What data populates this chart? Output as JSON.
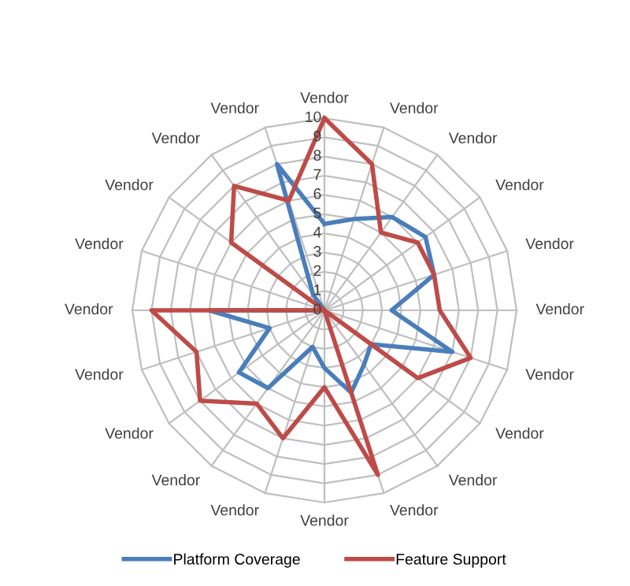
{
  "chart_data": {
    "type": "radar",
    "categories": [
      "Vendor",
      "Vendor",
      "Vendor",
      "Vendor",
      "Vendor",
      "Vendor",
      "Vendor",
      "Vendor",
      "Vendor",
      "Vendor",
      "Vendor",
      "Vendor",
      "Vendor",
      "Vendor",
      "Vendor",
      "Vendor",
      "Vendor",
      "Vendor",
      "Vendor",
      "Vendor"
    ],
    "series": [
      {
        "name": "Platform Coverage",
        "color": "#4a7ebb",
        "values": [
          4.5,
          5,
          6,
          6.5,
          6,
          3.5,
          7,
          3,
          3.5,
          4.5,
          3,
          2,
          5,
          5.5,
          3,
          6,
          0,
          0,
          1,
          8
        ]
      },
      {
        "name": "Feature Support",
        "color": "#be4b48",
        "values": [
          10,
          8,
          5,
          6,
          6,
          6,
          8,
          6,
          0,
          9,
          4,
          7,
          6,
          8,
          7,
          9,
          0,
          6,
          8,
          6
        ]
      }
    ],
    "ylim": [
      0,
      10
    ],
    "yticks": [
      0,
      1,
      2,
      3,
      4,
      5,
      6,
      7,
      8,
      9,
      10
    ],
    "grid": true,
    "legend": "bottom",
    "marker": "none",
    "line_style": "solid"
  }
}
